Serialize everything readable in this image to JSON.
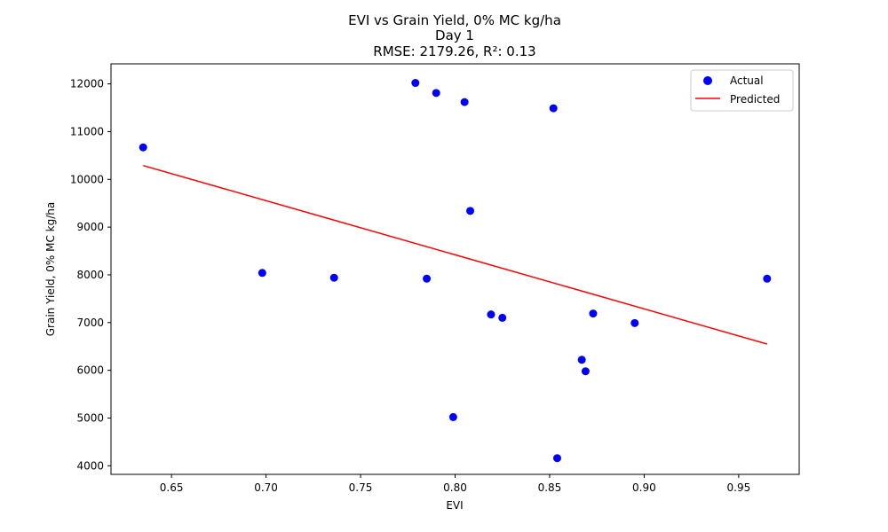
{
  "chart_data": {
    "type": "scatter",
    "title_lines": [
      "EVI vs Grain Yield, 0% MC kg/ha",
      "Day 1",
      "RMSE: 2179.26, R²: 0.13"
    ],
    "xlabel": "EVI",
    "ylabel": "Grain Yield, 0% MC kg/ha",
    "xlim": [
      0.618,
      0.982
    ],
    "ylim": [
      3820,
      12420
    ],
    "xticks": [
      0.65,
      0.7,
      0.75,
      0.8,
      0.85,
      0.9,
      0.95
    ],
    "xtick_labels": [
      "0.65",
      "0.70",
      "0.75",
      "0.80",
      "0.85",
      "0.90",
      "0.95"
    ],
    "yticks": [
      4000,
      5000,
      6000,
      7000,
      8000,
      9000,
      10000,
      11000,
      12000
    ],
    "ytick_labels": [
      "4000",
      "5000",
      "6000",
      "7000",
      "8000",
      "9000",
      "10000",
      "11000",
      "12000"
    ],
    "grid": false,
    "legend_position": "top-right",
    "series": [
      {
        "name": "Actual",
        "kind": "scatter",
        "color": "#0000ff",
        "points": [
          {
            "x": 0.635,
            "y": 10670
          },
          {
            "x": 0.698,
            "y": 8040
          },
          {
            "x": 0.736,
            "y": 7940
          },
          {
            "x": 0.779,
            "y": 12020
          },
          {
            "x": 0.785,
            "y": 7920
          },
          {
            "x": 0.79,
            "y": 11810
          },
          {
            "x": 0.799,
            "y": 5020
          },
          {
            "x": 0.805,
            "y": 11620
          },
          {
            "x": 0.808,
            "y": 9340
          },
          {
            "x": 0.819,
            "y": 7170
          },
          {
            "x": 0.825,
            "y": 7100
          },
          {
            "x": 0.852,
            "y": 11490
          },
          {
            "x": 0.854,
            "y": 4160
          },
          {
            "x": 0.867,
            "y": 6220
          },
          {
            "x": 0.869,
            "y": 5980
          },
          {
            "x": 0.873,
            "y": 7190
          },
          {
            "x": 0.895,
            "y": 6990
          },
          {
            "x": 0.965,
            "y": 7920
          }
        ]
      },
      {
        "name": "Predicted",
        "kind": "line",
        "color": "#ff0000",
        "points": [
          {
            "x": 0.635,
            "y": 10290
          },
          {
            "x": 0.965,
            "y": 6550
          }
        ]
      }
    ]
  }
}
